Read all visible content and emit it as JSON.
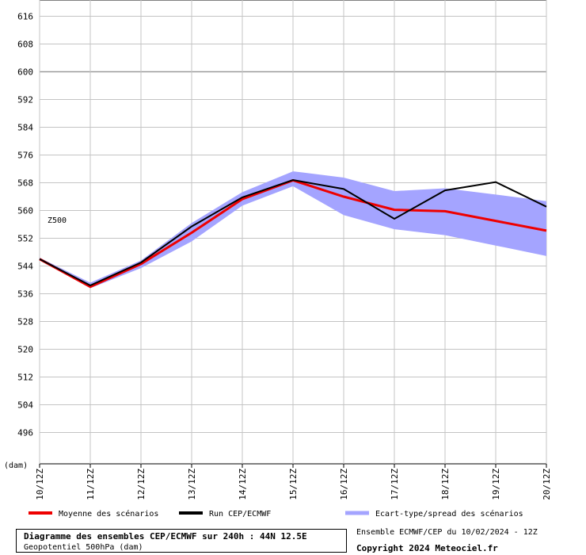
{
  "chart_data": {
    "type": "line",
    "variable_label": "Z500",
    "unit_label": "(dam)",
    "ylim": [
      488,
      620
    ],
    "y_ticks": [
      496,
      504,
      512,
      520,
      528,
      536,
      544,
      552,
      560,
      568,
      576,
      584,
      592,
      600,
      608,
      616
    ],
    "categories": [
      "10/12Z",
      "11/12Z",
      "12/12Z",
      "13/12Z",
      "14/12Z",
      "15/12Z",
      "16/12Z",
      "17/12Z",
      "18/12Z",
      "19/12Z",
      "20/12Z"
    ],
    "grid": true,
    "series": [
      {
        "name": "Moyenne des scénarios",
        "color": "#ee0000",
        "values": [
          546,
          538,
          544.6,
          553.6,
          563.3,
          568.7,
          564,
          560.2,
          559.8,
          557,
          554.2
        ]
      },
      {
        "name": "Run CEP/ECMWF",
        "color": "#000000",
        "values": [
          546,
          538.4,
          545,
          555.4,
          563.8,
          568.8,
          566.2,
          557.6,
          565.8,
          568.2,
          561.1
        ]
      }
    ],
    "spread": {
      "name": "Ecart-type/spread des scénarios",
      "color": "#a4a4ff",
      "upper": [
        546.4,
        539.2,
        545.6,
        556.4,
        565.3,
        571.3,
        569.5,
        565.6,
        566.4,
        564.6,
        562.7
      ],
      "lower": [
        545.7,
        537.6,
        543.4,
        551.1,
        561.4,
        567,
        558.7,
        554.6,
        552.9,
        549.9,
        546.9
      ]
    }
  },
  "footer": {
    "title": "Diagramme des ensembles CEP/ECMWF sur 240h : 44N 12.5E",
    "subtitle": "Geopotentiel 500hPa (dam)",
    "run_info": "Ensemble ECMWF/CEP du 10/02/2024 - 12Z",
    "copyright": "Copyright 2024 Meteociel.fr"
  }
}
